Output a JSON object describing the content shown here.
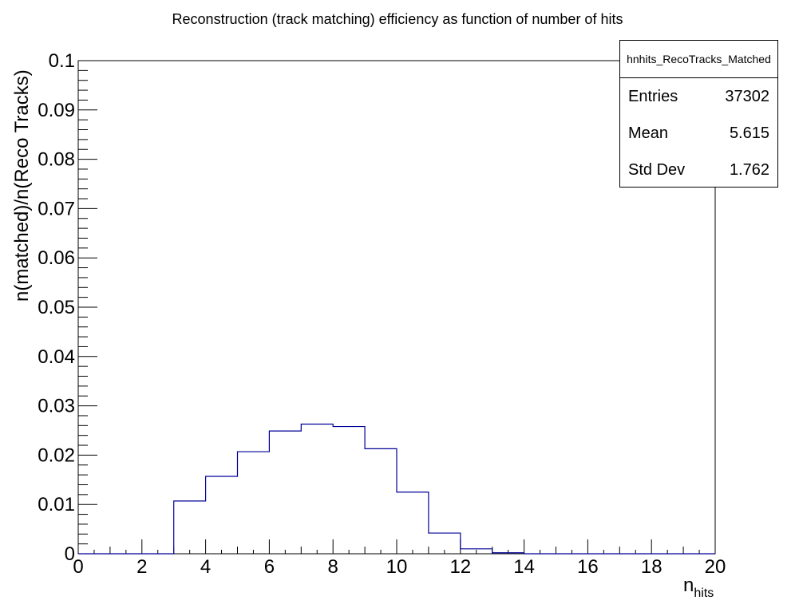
{
  "title": "Reconstruction (track matching) efficiency as function of number of hits",
  "ylabel": "n(matched)/n(Reco Tracks)",
  "xlabel": {
    "main": "n",
    "sub": "hits"
  },
  "stats": {
    "name": "hnhits_RecoTracks_Matched",
    "rows": [
      {
        "label": "Entries",
        "value": "37302"
      },
      {
        "label": "Mean",
        "value": "5.615"
      },
      {
        "label": "Std Dev",
        "value": "1.762"
      }
    ]
  },
  "colors": {
    "line": "#000099",
    "axis": "#000000"
  },
  "chart_data": {
    "type": "histogram",
    "bin_edges": [
      0,
      1,
      2,
      3,
      4,
      5,
      6,
      7,
      8,
      9,
      10,
      11,
      12,
      13,
      14,
      15,
      16,
      17,
      18,
      19,
      20
    ],
    "values": [
      0,
      0,
      0,
      0.0107,
      0.0157,
      0.0207,
      0.0249,
      0.0263,
      0.0258,
      0.0213,
      0.0125,
      0.0042,
      0.001,
      0.0002,
      0,
      0,
      0,
      0,
      0,
      0
    ],
    "xlim": [
      0,
      20
    ],
    "ylim": [
      0,
      0.1
    ],
    "xticks": [
      "0",
      "2",
      "4",
      "6",
      "8",
      "10",
      "12",
      "14",
      "16",
      "18",
      "20"
    ],
    "yticks": [
      "0",
      "0.01",
      "0.02",
      "0.03",
      "0.04",
      "0.05",
      "0.06",
      "0.07",
      "0.08",
      "0.09",
      "0.1"
    ],
    "grid": false
  }
}
